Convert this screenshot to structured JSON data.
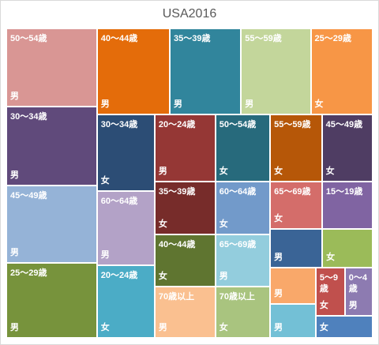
{
  "chart_data": {
    "type": "treemap",
    "title": "USA2016",
    "categories": [
      "50～54歳",
      "30～34歳",
      "45～49歳",
      "25～29歳",
      "40～44歳",
      "35～39歳",
      "55～59歳",
      "25～29歳",
      "30～34歳",
      "60～64歳",
      "20～24歳",
      "20～24歳",
      "35～39歳",
      "40～44歳",
      "70歳以上",
      "50～54歳",
      "60～64歳",
      "65～69歳",
      "70歳以上",
      "55～59歳",
      "45～49歳",
      "65～69歳",
      "15～19歳",
      null,
      null,
      null,
      null,
      "5～9歳",
      "0～4歳",
      null
    ],
    "sexes": [
      "男",
      "男",
      "男",
      "男",
      "男",
      "男",
      "男",
      "女",
      "女",
      "男",
      "女",
      "男",
      "女",
      "女",
      "男",
      "女",
      "女",
      "男",
      "女",
      "女",
      "女",
      "女",
      null,
      "男",
      "女",
      "男",
      "男",
      "女",
      "男",
      "女"
    ],
    "values": [
      10.6,
      10.7,
      10.5,
      10.2,
      9.4,
      9.2,
      9.0,
      8.0,
      6.6,
      6.4,
      6.3,
      6.1,
      4.8,
      4.7,
      4.7,
      5.5,
      4.3,
      4.3,
      4.2,
      5.2,
      5.1,
      3.7,
      3.6,
      3.0,
      2.9,
      2.5,
      2.3,
      2.1,
      2.0,
      1.9
    ],
    "colors": [
      "#d99694",
      "#604a7b",
      "#95b3d7",
      "#77933c",
      "#e46c0a",
      "#31859c",
      "#c3d69b",
      "#f79646",
      "#2c4d75",
      "#b3a2c7",
      "#4bacc6",
      "#953735",
      "#772c2a",
      "#5f7530",
      "#fac090",
      "#276a7c",
      "#729aca",
      "#93cddd",
      "#a9c47f",
      "#b65708",
      "#4f3d63",
      "#d46d6a",
      "#8064a2",
      "#3a6496",
      "#9bbb59",
      "#f9a86a",
      "#73c0d6",
      "#c0504d",
      "#8d7bb1",
      "#4f81bd"
    ]
  }
}
